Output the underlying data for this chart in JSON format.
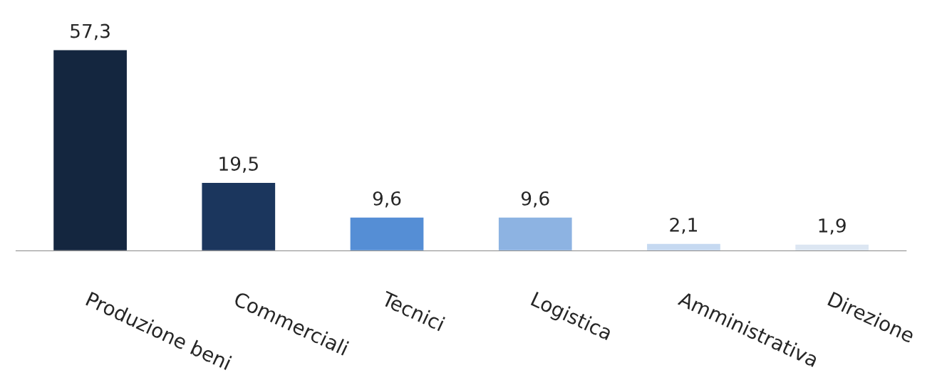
{
  "chart_data": {
    "type": "bar",
    "categories": [
      "Produzione beni",
      "Commerciali",
      "Tecnici",
      "Logistica",
      "Amministrativa",
      "Direzione"
    ],
    "values": [
      57.3,
      19.5,
      9.6,
      9.6,
      2.1,
      1.9
    ],
    "value_labels": [
      "57,3",
      "19,5",
      "9,6",
      "9,6",
      "2,1",
      "1,9"
    ],
    "colors": [
      "#14263f",
      "#1b365d",
      "#558ed5",
      "#8db3e2",
      "#c6d9f1",
      "#dce6f2"
    ],
    "grid": false,
    "legend": false
  }
}
